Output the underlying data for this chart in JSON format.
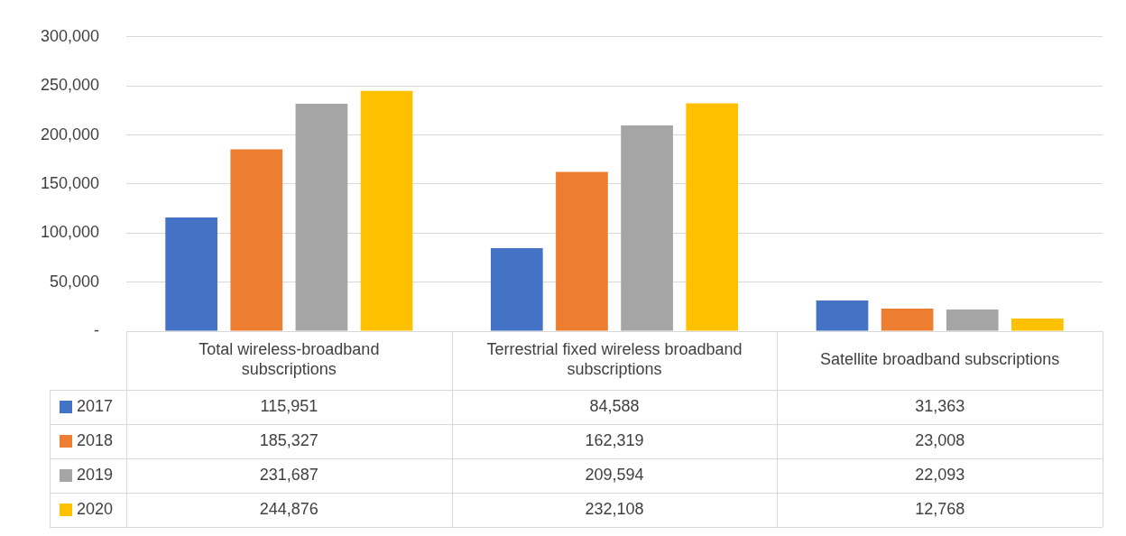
{
  "chart_data": {
    "type": "bar",
    "categories": [
      "Total wireless-broadband subscriptions",
      "Terrestrial fixed wireless broadband subscriptions",
      "Satellite broadband subscriptions"
    ],
    "series": [
      {
        "name": "2017",
        "color": "#4472c4",
        "values": [
          115951,
          84588,
          31363
        ],
        "value_labels": [
          "115,951",
          "84,588",
          "31,363"
        ]
      },
      {
        "name": "2018",
        "color": "#ed7d31",
        "values": [
          185327,
          162319,
          23008
        ],
        "value_labels": [
          "185,327",
          "162,319",
          "23,008"
        ]
      },
      {
        "name": "2019",
        "color": "#a5a5a5",
        "values": [
          231687,
          209594,
          22093
        ],
        "value_labels": [
          "231,687",
          "209,594",
          "22,093"
        ]
      },
      {
        "name": "2020",
        "color": "#ffc000",
        "values": [
          244876,
          232108,
          12768
        ],
        "value_labels": [
          "244,876",
          "232,108",
          "12,768"
        ]
      }
    ],
    "ylim": [
      0,
      300000
    ],
    "yticks": [
      {
        "value": 0,
        "label": "-"
      },
      {
        "value": 50000,
        "label": "50,000"
      },
      {
        "value": 100000,
        "label": "100,000"
      },
      {
        "value": 150000,
        "label": "150,000"
      },
      {
        "value": 200000,
        "label": "200,000"
      },
      {
        "value": 250000,
        "label": "250,000"
      },
      {
        "value": 300000,
        "label": "300,000"
      }
    ],
    "grid": "y",
    "legend": "bottom"
  }
}
